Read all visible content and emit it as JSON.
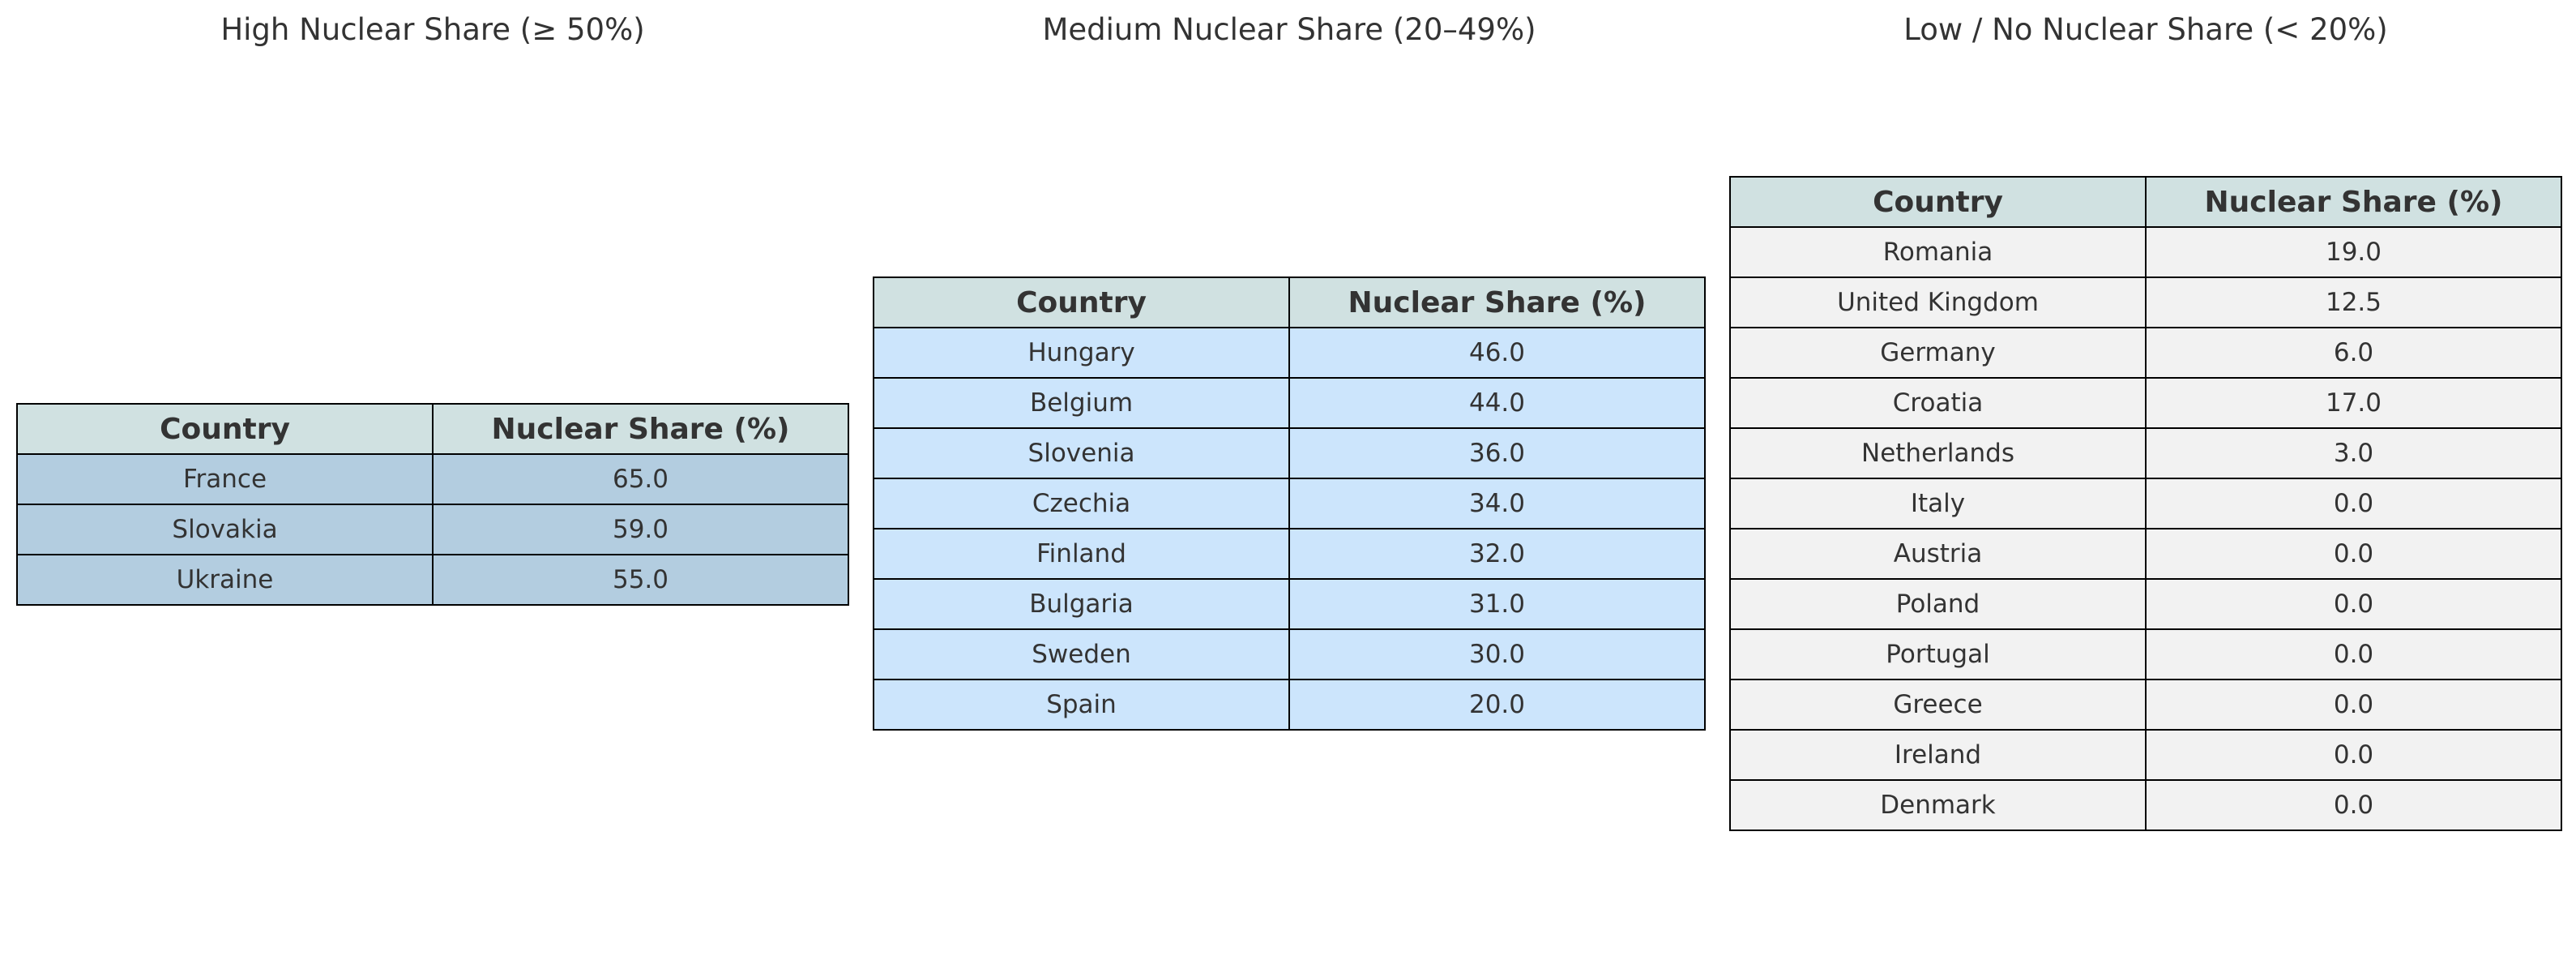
{
  "chart_data": [
    {
      "type": "table",
      "title": "High Nuclear Share (≥ 50%)",
      "columns": [
        "Country",
        "Nuclear Share (%)"
      ],
      "header_color": "#d0e1e1",
      "row_color": "#b3cde0",
      "rows": [
        {
          "country": "France",
          "share": "65.0"
        },
        {
          "country": "Slovakia",
          "share": "59.0"
        },
        {
          "country": "Ukraine",
          "share": "55.0"
        }
      ]
    },
    {
      "type": "table",
      "title": "Medium Nuclear Share (20–49%)",
      "columns": [
        "Country",
        "Nuclear Share (%)"
      ],
      "header_color": "#d0e1e1",
      "row_color": "#cce5fc",
      "rows": [
        {
          "country": "Hungary",
          "share": "46.0"
        },
        {
          "country": "Belgium",
          "share": "44.0"
        },
        {
          "country": "Slovenia",
          "share": "36.0"
        },
        {
          "country": "Czechia",
          "share": "34.0"
        },
        {
          "country": "Finland",
          "share": "32.0"
        },
        {
          "country": "Bulgaria",
          "share": "31.0"
        },
        {
          "country": "Sweden",
          "share": "30.0"
        },
        {
          "country": "Spain",
          "share": "20.0"
        }
      ]
    },
    {
      "type": "table",
      "title": "Low / No Nuclear Share (< 20%)",
      "columns": [
        "Country",
        "Nuclear Share (%)"
      ],
      "header_color": "#d0e1e1",
      "row_color": "#f2f2f2",
      "rows": [
        {
          "country": "Romania",
          "share": "19.0"
        },
        {
          "country": "United Kingdom",
          "share": "12.5"
        },
        {
          "country": "Germany",
          "share": "6.0"
        },
        {
          "country": "Croatia",
          "share": "17.0"
        },
        {
          "country": "Netherlands",
          "share": "3.0"
        },
        {
          "country": "Italy",
          "share": "0.0"
        },
        {
          "country": "Austria",
          "share": "0.0"
        },
        {
          "country": "Poland",
          "share": "0.0"
        },
        {
          "country": "Portugal",
          "share": "0.0"
        },
        {
          "country": "Greece",
          "share": "0.0"
        },
        {
          "country": "Ireland",
          "share": "0.0"
        },
        {
          "country": "Denmark",
          "share": "0.0"
        }
      ]
    }
  ]
}
